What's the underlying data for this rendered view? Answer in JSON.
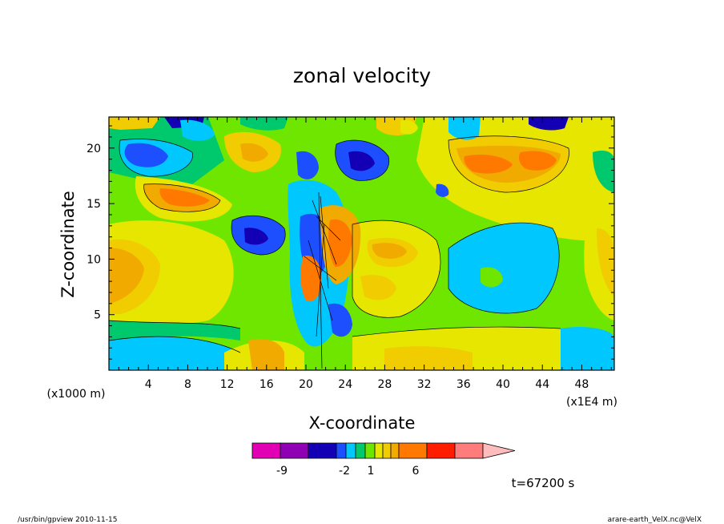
{
  "chart_data": {
    "type": "heatmap",
    "title": "zonal velocity",
    "xlabel": "X-coordinate",
    "ylabel": "Z-coordinate",
    "x_unit": "(x1E4 m)",
    "y_unit": "(x1000 m)",
    "xlim": [
      0,
      51.3
    ],
    "ylim": [
      0,
      22.8
    ],
    "x_ticks": [
      "4",
      "8",
      "12",
      "16",
      "20",
      "24",
      "28",
      "32",
      "36",
      "40",
      "44",
      "48"
    ],
    "y_ticks": [
      "5",
      "10",
      "15",
      "20"
    ],
    "colorbar": {
      "colors": [
        "#e200b4",
        "#8f00b4",
        "#1300b4",
        "#1e4fff",
        "#00c8ff",
        "#00c86c",
        "#6ee600",
        "#e6e600",
        "#f0cc00",
        "#f0aa00",
        "#ff7800",
        "#ff1d00",
        "#ff7c7c",
        "#ffbcbc"
      ],
      "labels": [
        "-9",
        "-2",
        "1",
        "6"
      ]
    },
    "annotation": "t=67200 s"
  },
  "footer": {
    "left": "/usr/bin/gpview   2010-11-15",
    "right": "arare-earth_VelX.nc@VelX"
  }
}
